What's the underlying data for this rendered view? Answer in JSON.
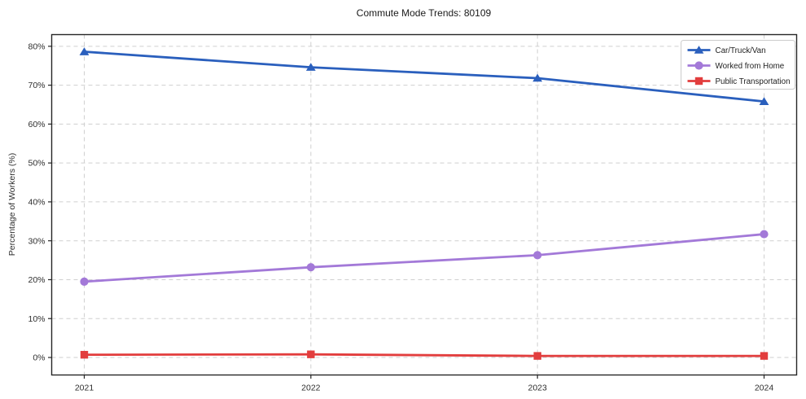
{
  "chart_data": {
    "type": "line",
    "title": "Commute Mode Trends: 80109",
    "xlabel": "",
    "ylabel": "Percentage of Workers (%)",
    "x_categories": [
      "2021",
      "2022",
      "2023",
      "2024"
    ],
    "y_tick_labels": [
      "0%",
      "10%",
      "20%",
      "30%",
      "40%",
      "50%",
      "60%",
      "70%",
      "80%"
    ],
    "y_tick_values": [
      0,
      10,
      20,
      30,
      40,
      50,
      60,
      70,
      80
    ],
    "ylim": [
      -4.5,
      83
    ],
    "grid": true,
    "legend_position": "upper right",
    "colors": {
      "grid": "#cfcfcf",
      "spine": "#262626",
      "blue": "#2a5fbd",
      "purple": "#a379d8",
      "red": "#e23d3d"
    },
    "series": [
      {
        "name": "Car/Truck/Van",
        "color": "#2a5fbd",
        "marker": "triangle",
        "values": [
          78.6,
          74.6,
          71.8,
          65.8
        ]
      },
      {
        "name": "Worked from Home",
        "color": "#a379d8",
        "marker": "circle",
        "values": [
          19.5,
          23.2,
          26.3,
          31.7
        ]
      },
      {
        "name": "Public Transportation",
        "color": "#e23d3d",
        "marker": "square",
        "values": [
          0.7,
          0.8,
          0.4,
          0.4
        ]
      }
    ]
  }
}
